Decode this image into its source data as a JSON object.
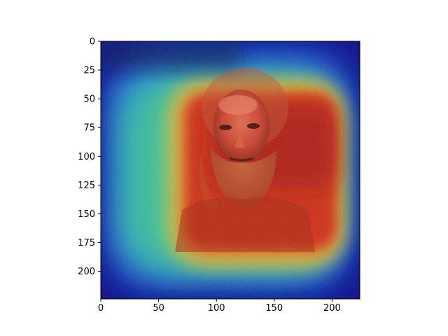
{
  "image": {
    "title": "",
    "description": "Grad-CAM style heatmap overlay (jet colormap) on a portrait photograph of a bearded man",
    "colormap": "jet",
    "colors": {
      "background": "#ffffff",
      "axis": "#000000",
      "low": "#00007f",
      "mid": "#1fbfa0",
      "high": "#c81e0a"
    }
  },
  "axes": {
    "x_ticks": [
      {
        "value": 0,
        "label": "0"
      },
      {
        "value": 50,
        "label": "50"
      },
      {
        "value": 100,
        "label": "100"
      },
      {
        "value": 150,
        "label": "150"
      },
      {
        "value": 200,
        "label": "200"
      }
    ],
    "y_ticks": [
      {
        "value": 0,
        "label": "0"
      },
      {
        "value": 25,
        "label": "25"
      },
      {
        "value": 50,
        "label": "50"
      },
      {
        "value": 75,
        "label": "75"
      },
      {
        "value": 100,
        "label": "100"
      },
      {
        "value": 125,
        "label": "125"
      },
      {
        "value": 150,
        "label": "150"
      },
      {
        "value": 175,
        "label": "175"
      },
      {
        "value": 200,
        "label": "200"
      }
    ],
    "xlim": [
      0,
      224
    ],
    "ylim": [
      224,
      0
    ]
  }
}
